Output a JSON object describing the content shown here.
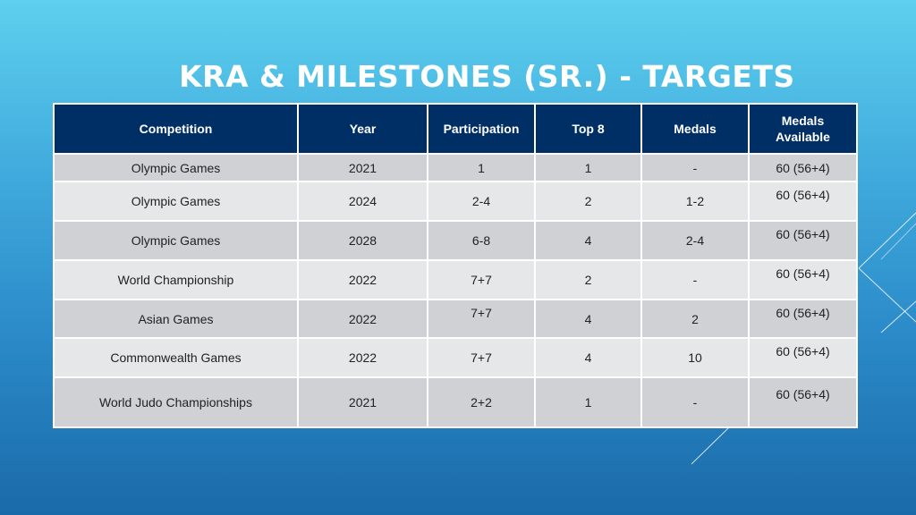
{
  "title": "KRA & MILESTONES (SR.) - TARGETS",
  "table": {
    "headers": [
      "Competition",
      "Year",
      "Participation",
      "Top 8",
      "Medals",
      "Medals Available"
    ],
    "rows": [
      [
        "Olympic Games",
        "2021",
        "1",
        "1",
        "-",
        "60 (56+4)"
      ],
      [
        "Olympic Games",
        "2024",
        "2-4",
        "2",
        "1-2",
        "60 (56+4)"
      ],
      [
        "Olympic Games",
        "2028",
        "6-8",
        "4",
        "2-4",
        "60 (56+4)"
      ],
      [
        "World Championship",
        "2022",
        "7+7",
        "2",
        "-",
        "60 (56+4)"
      ],
      [
        "Asian Games",
        "2022",
        "7+7",
        "4",
        "2",
        "60 (56+4)"
      ],
      [
        "Commonwealth Games",
        "2022",
        "7+7",
        "4",
        "10",
        "60 (56+4)"
      ],
      [
        "World Judo Championships",
        "2021",
        "2+2",
        "1",
        "-",
        "60 (56+4)"
      ]
    ]
  }
}
